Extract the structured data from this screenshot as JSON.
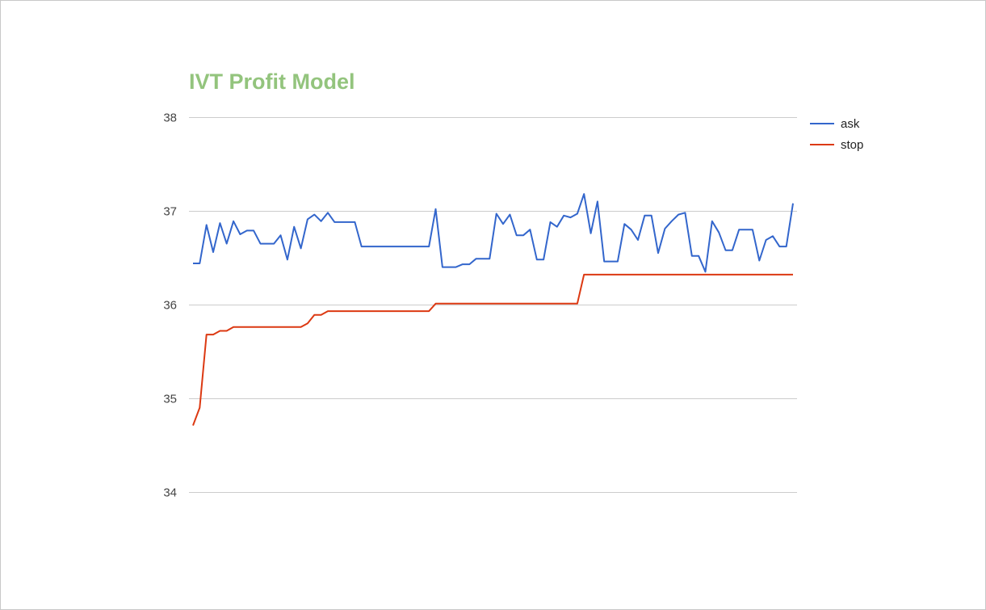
{
  "chart_data": {
    "type": "line",
    "title": "IVT Profit Model",
    "xlabel": "",
    "ylabel": "",
    "ylim": [
      34,
      38
    ],
    "yticks": [
      "34",
      "35",
      "36",
      "37",
      "38"
    ],
    "grid": true,
    "legend_position": "right",
    "title_color": "#93c47d",
    "series": [
      {
        "name": "ask",
        "color": "#3366cc",
        "values": [
          36.44,
          36.44,
          36.85,
          36.56,
          36.87,
          36.65,
          36.89,
          36.75,
          36.79,
          36.79,
          36.65,
          36.65,
          36.65,
          36.74,
          36.48,
          36.83,
          36.6,
          36.91,
          36.96,
          36.89,
          36.98,
          36.88,
          36.88,
          36.88,
          36.88,
          36.62,
          36.62,
          36.62,
          36.62,
          36.62,
          36.62,
          36.62,
          36.62,
          36.62,
          36.62,
          36.62,
          37.02,
          36.4,
          36.4,
          36.4,
          36.43,
          36.43,
          36.49,
          36.49,
          36.49,
          36.97,
          36.86,
          36.96,
          36.74,
          36.74,
          36.8,
          36.48,
          36.48,
          36.88,
          36.83,
          36.95,
          36.93,
          36.97,
          37.18,
          36.76,
          37.1,
          36.46,
          36.46,
          36.46,
          36.86,
          36.8,
          36.69,
          36.95,
          36.95,
          36.55,
          36.81,
          36.89,
          36.96,
          36.98,
          36.52,
          36.52,
          36.35,
          36.89,
          36.77,
          36.58,
          36.58,
          36.8,
          36.8,
          36.8,
          36.47,
          36.69,
          36.73,
          36.62,
          36.62,
          37.08
        ]
      },
      {
        "name": "stop",
        "color": "#dc3912",
        "values": [
          34.71,
          34.9,
          35.68,
          35.68,
          35.72,
          35.72,
          35.76,
          35.76,
          35.76,
          35.76,
          35.76,
          35.76,
          35.76,
          35.76,
          35.76,
          35.76,
          35.76,
          35.8,
          35.89,
          35.89,
          35.93,
          35.93,
          35.93,
          35.93,
          35.93,
          35.93,
          35.93,
          35.93,
          35.93,
          35.93,
          35.93,
          35.93,
          35.93,
          35.93,
          35.93,
          35.93,
          36.01,
          36.01,
          36.01,
          36.01,
          36.01,
          36.01,
          36.01,
          36.01,
          36.01,
          36.01,
          36.01,
          36.01,
          36.01,
          36.01,
          36.01,
          36.01,
          36.01,
          36.01,
          36.01,
          36.01,
          36.01,
          36.01,
          36.32,
          36.32,
          36.32,
          36.32,
          36.32,
          36.32,
          36.32,
          36.32,
          36.32,
          36.32,
          36.32,
          36.32,
          36.32,
          36.32,
          36.32,
          36.32,
          36.32,
          36.32,
          36.32,
          36.32,
          36.32,
          36.32,
          36.32,
          36.32,
          36.32,
          36.32,
          36.32,
          36.32,
          36.32,
          36.32,
          36.32,
          36.32
        ]
      }
    ]
  }
}
